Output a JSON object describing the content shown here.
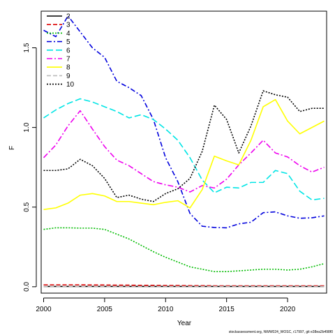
{
  "chart_data": {
    "type": "line",
    "xlabel": "Year",
    "ylabel": "F",
    "xlim": [
      1999.8,
      2023.2
    ],
    "ylim": [
      -0.04,
      1.73
    ],
    "x_ticks": [
      2000,
      2005,
      2010,
      2015,
      2020
    ],
    "y_ticks": [
      0.0,
      0.5,
      1.0,
      1.5
    ],
    "y_tick_labels": [
      "0.0",
      "0.5",
      "1.0",
      "1.5"
    ],
    "legend_position": "top-left",
    "x": [
      2000,
      2001,
      2002,
      2003,
      2004,
      2005,
      2006,
      2007,
      2008,
      2009,
      2010,
      2011,
      2012,
      2013,
      2014,
      2015,
      2016,
      2017,
      2018,
      2019,
      2020,
      2021,
      2022,
      2023
    ],
    "series": [
      {
        "name": "2",
        "color": "#000000",
        "dash": "solid",
        "values": [
          0.002,
          0.002,
          0.002,
          0.002,
          0.002,
          0.002,
          0.002,
          0.002,
          0.002,
          0.002,
          0.002,
          0.002,
          0.002,
          0.002,
          0.002,
          0.002,
          0.002,
          0.002,
          0.002,
          0.002,
          0.002,
          0.002,
          0.002,
          0.002
        ]
      },
      {
        "name": "3",
        "color": "#dd0000",
        "dash": "6,3",
        "values": [
          0.012,
          0.012,
          0.012,
          0.012,
          0.011,
          0.011,
          0.01,
          0.01,
          0.009,
          0.009,
          0.008,
          0.008,
          0.007,
          0.007,
          0.006,
          0.006,
          0.006,
          0.006,
          0.006,
          0.006,
          0.006,
          0.006,
          0.006,
          0.006
        ]
      },
      {
        "name": "4",
        "color": "#00bb00",
        "dash": "2,2",
        "values": [
          0.36,
          0.37,
          0.37,
          0.368,
          0.368,
          0.36,
          0.33,
          0.3,
          0.26,
          0.22,
          0.185,
          0.155,
          0.125,
          0.11,
          0.095,
          0.095,
          0.1,
          0.105,
          0.11,
          0.11,
          0.105,
          0.11,
          0.125,
          0.145
        ]
      },
      {
        "name": "5",
        "color": "#0000dd",
        "dash": "7,3,2,3",
        "values": [
          1.61,
          1.57,
          1.7,
          1.6,
          1.5,
          1.44,
          1.29,
          1.25,
          1.2,
          1.05,
          0.81,
          0.66,
          0.46,
          0.38,
          0.372,
          0.37,
          0.395,
          0.405,
          0.465,
          0.47,
          0.445,
          0.43,
          0.433,
          0.445
        ]
      },
      {
        "name": "6",
        "color": "#00e5e5",
        "dash": "9,4",
        "values": [
          1.06,
          1.11,
          1.15,
          1.18,
          1.16,
          1.13,
          1.1,
          1.06,
          1.08,
          1.05,
          0.99,
          0.92,
          0.81,
          0.67,
          0.59,
          0.625,
          0.62,
          0.655,
          0.655,
          0.73,
          0.71,
          0.6,
          0.545,
          0.555
        ]
      },
      {
        "name": "7",
        "color": "#ee00ee",
        "dash": "8,3,2,3",
        "values": [
          0.81,
          0.89,
          1.01,
          1.105,
          0.99,
          0.88,
          0.795,
          0.76,
          0.71,
          0.66,
          0.64,
          0.625,
          0.595,
          0.635,
          0.62,
          0.675,
          0.765,
          0.84,
          0.92,
          0.84,
          0.815,
          0.76,
          0.72,
          0.75
        ]
      },
      {
        "name": "8",
        "color": "#ffff00",
        "dash": "solid",
        "values": [
          0.485,
          0.495,
          0.525,
          0.575,
          0.585,
          0.57,
          0.535,
          0.535,
          0.525,
          0.515,
          0.53,
          0.54,
          0.495,
          0.61,
          0.82,
          0.79,
          0.765,
          0.92,
          1.13,
          1.175,
          1.04,
          0.96,
          1.0,
          1.04
        ]
      },
      {
        "name": "9",
        "color": "#bbbbbb",
        "dash": "6,3",
        "values": [
          0.002,
          0.002,
          0.002,
          0.002,
          0.002,
          0.002,
          0.002,
          0.002,
          0.002,
          0.002,
          0.002,
          0.002,
          0.002,
          0.002,
          0.002,
          0.002,
          0.002,
          0.002,
          0.002,
          0.002,
          0.002,
          0.002,
          0.002,
          0.002
        ]
      },
      {
        "name": "10",
        "color": "#000000",
        "dash": "2,2",
        "values": [
          0.73,
          0.73,
          0.74,
          0.8,
          0.76,
          0.68,
          0.56,
          0.575,
          0.55,
          0.535,
          0.585,
          0.615,
          0.68,
          0.85,
          1.14,
          1.05,
          0.84,
          1.01,
          1.23,
          1.205,
          1.19,
          1.1,
          1.12,
          1.12
        ]
      }
    ]
  },
  "footnote": "stockassessment.org, NWW024_WOSC, r17997, git e38ea2b498f0"
}
